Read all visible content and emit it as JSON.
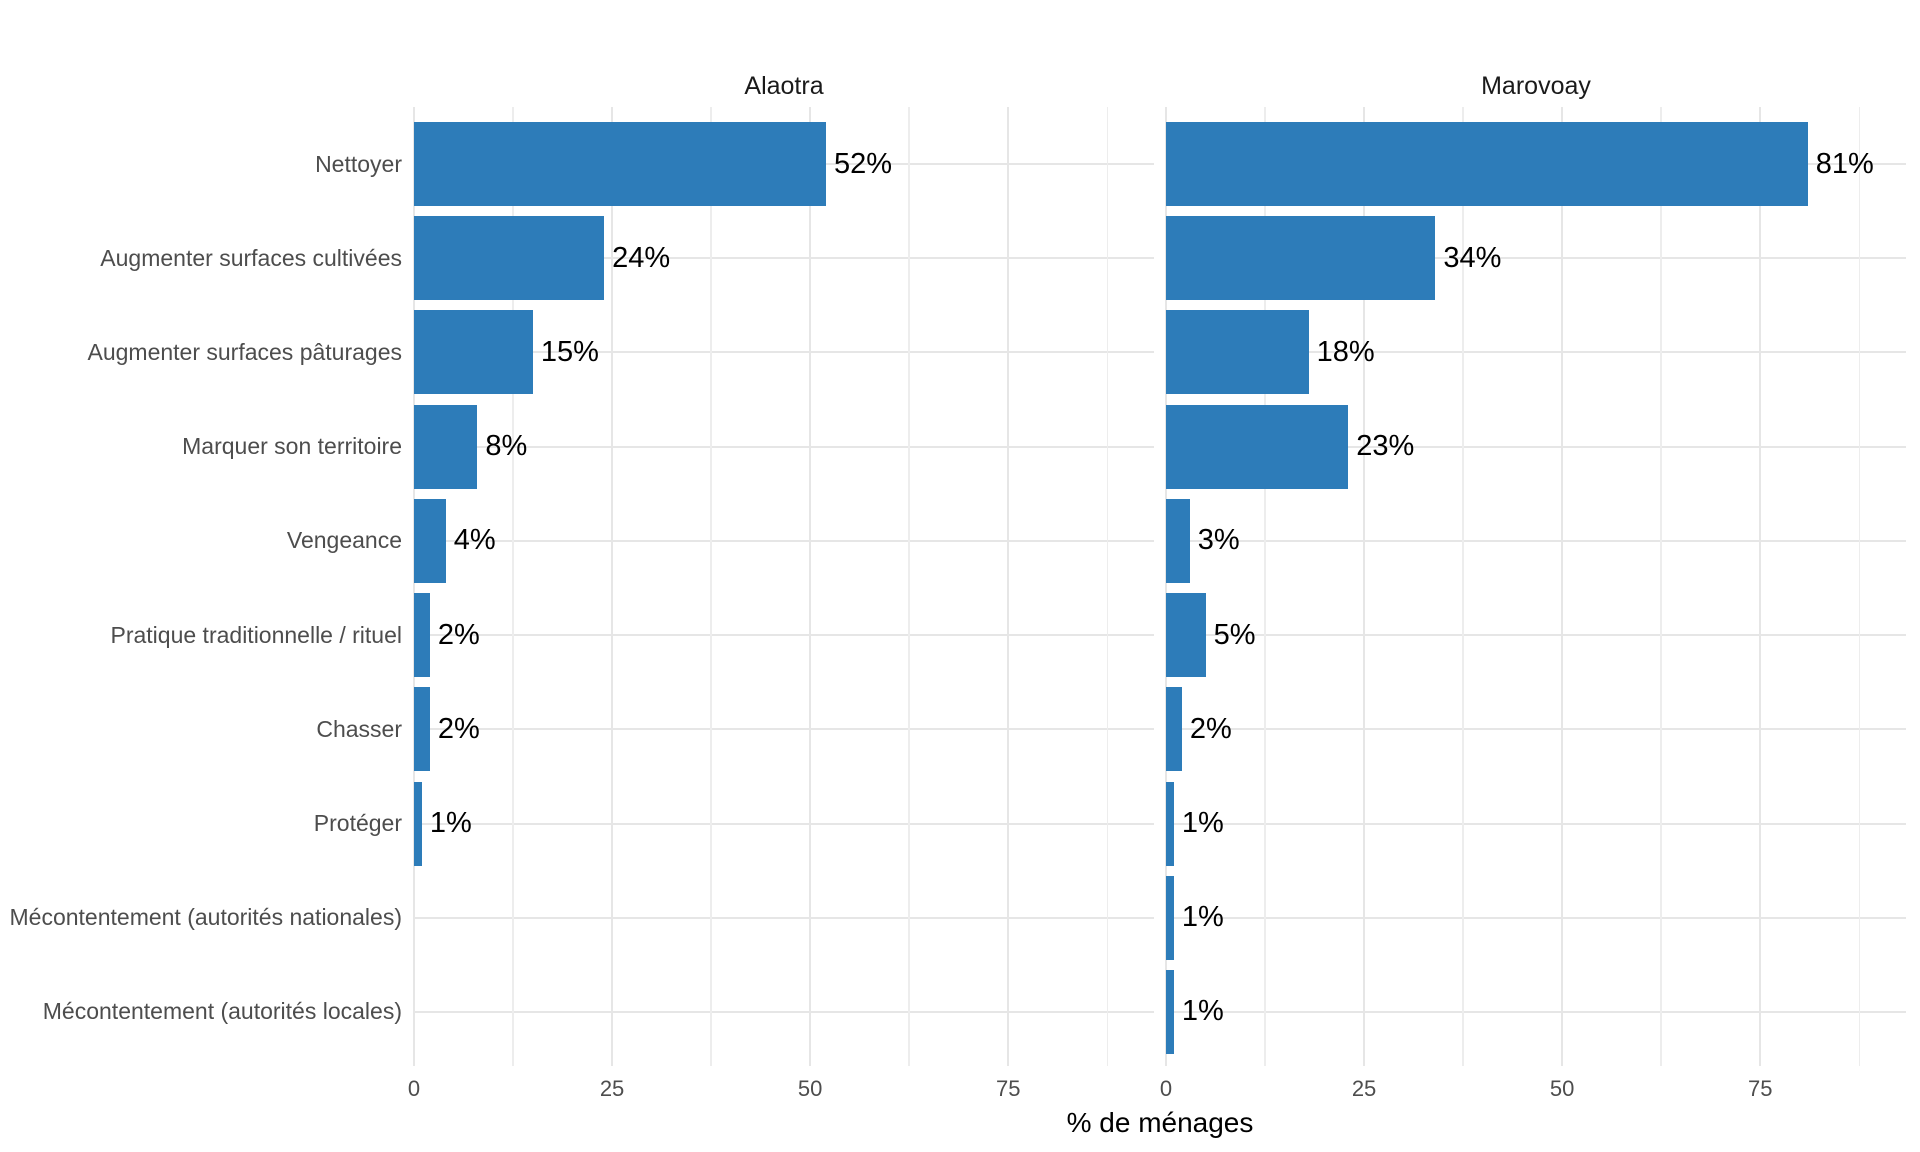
{
  "chart_data": {
    "type": "bar",
    "orientation": "horizontal",
    "title": "",
    "xlabel": "% de ménages",
    "categories": [
      "Nettoyer",
      "Augmenter surfaces cultivées",
      "Augmenter surfaces pâturages",
      "Marquer son territoire",
      "Vengeance",
      "Pratique traditionnelle / rituel",
      "Chasser",
      "Protéger",
      "Mécontentement (autorités nationales)",
      "Mécontentement (autorités locales)"
    ],
    "facets": [
      {
        "title": "Alaotra",
        "values": [
          52,
          24,
          15,
          8,
          4,
          2,
          2,
          1,
          0,
          0
        ],
        "value_labels": [
          "52%",
          "24%",
          "15%",
          "8%",
          "4%",
          "2%",
          "2%",
          "1%",
          "",
          ""
        ]
      },
      {
        "title": "Marovoay",
        "values": [
          81,
          34,
          18,
          23,
          3,
          5,
          2,
          1,
          1,
          1
        ],
        "value_labels": [
          "81%",
          "34%",
          "18%",
          "23%",
          "3%",
          "5%",
          "2%",
          "1%",
          "1%",
          "1%"
        ]
      }
    ],
    "x_major_ticks": [
      0,
      25,
      50,
      75
    ],
    "x_minor_ticks": [
      12.5,
      37.5,
      62.5,
      87.5
    ],
    "xlim": [
      0,
      93.4
    ],
    "grid": true,
    "legend": "none",
    "value_label_suffix": "%"
  },
  "colors": {
    "bar": "#2d7cb9",
    "axis_text": "#4d4d4d",
    "category_text": "#4d4d4d",
    "facet_title_text": "#1a1a1a",
    "value_label_text": "#000000",
    "grid_major": "#e6e6e6",
    "grid_minor": "#ededed",
    "background": "#ffffff"
  }
}
